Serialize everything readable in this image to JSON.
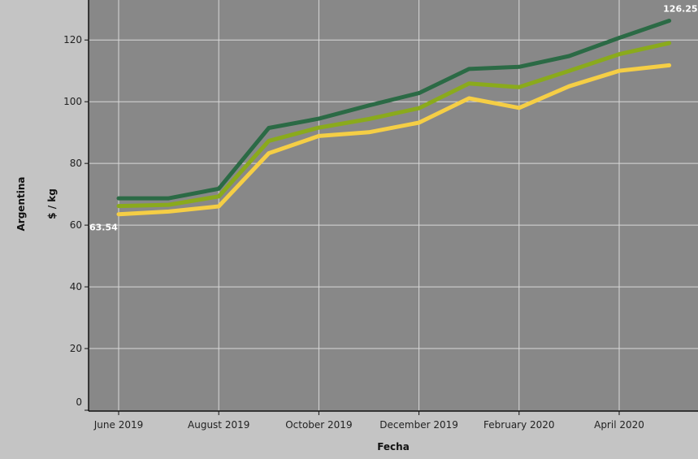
{
  "chart_data": {
    "type": "line",
    "row_label": "Argentina",
    "ylabel": "$ / kg",
    "xlabel": "Fecha",
    "ylim": [
      0,
      130
    ],
    "yticks": [
      0,
      20,
      40,
      60,
      80,
      100,
      120
    ],
    "x": [
      "2019-06",
      "2019-07",
      "2019-08",
      "2019-09",
      "2019-10",
      "2019-11",
      "2019-12",
      "2020-01",
      "2020-02",
      "2020-03",
      "2020-04",
      "2020-05"
    ],
    "xtick_labels": [
      {
        "x": "2019-06",
        "label": "June 2019"
      },
      {
        "x": "2019-08",
        "label": "August 2019"
      },
      {
        "x": "2019-10",
        "label": "October 2019"
      },
      {
        "x": "2019-12",
        "label": "December 2019"
      },
      {
        "x": "2020-02",
        "label": "February 2020"
      },
      {
        "x": "2020-04",
        "label": "April 2020"
      }
    ],
    "grid": true,
    "series": [
      {
        "color": "#2b6a45",
        "values": [
          68.7,
          68.7,
          71.8,
          91.5,
          94.5,
          98.8,
          102.8,
          110.6,
          111.3,
          114.8,
          120.7,
          126.25
        ]
      },
      {
        "color": "#8aaa1c",
        "values": [
          66.2,
          66.6,
          69.3,
          87.3,
          91.6,
          94.4,
          97.9,
          105.9,
          104.7,
          110.0,
          115.4,
          119.0
        ]
      },
      {
        "color": "#f5ce45",
        "values": [
          63.54,
          64.4,
          66.1,
          83.3,
          88.9,
          90.1,
          93.2,
          101.1,
          98.0,
          105.0,
          110.0,
          111.8
        ]
      }
    ],
    "annotations": [
      {
        "text": "126.25",
        "series": 0,
        "x": "2020-05"
      },
      {
        "text": "63.54",
        "series": 2,
        "x": "2019-06"
      }
    ],
    "plot_background": "#888888",
    "page_background": "#c4c4c4"
  }
}
